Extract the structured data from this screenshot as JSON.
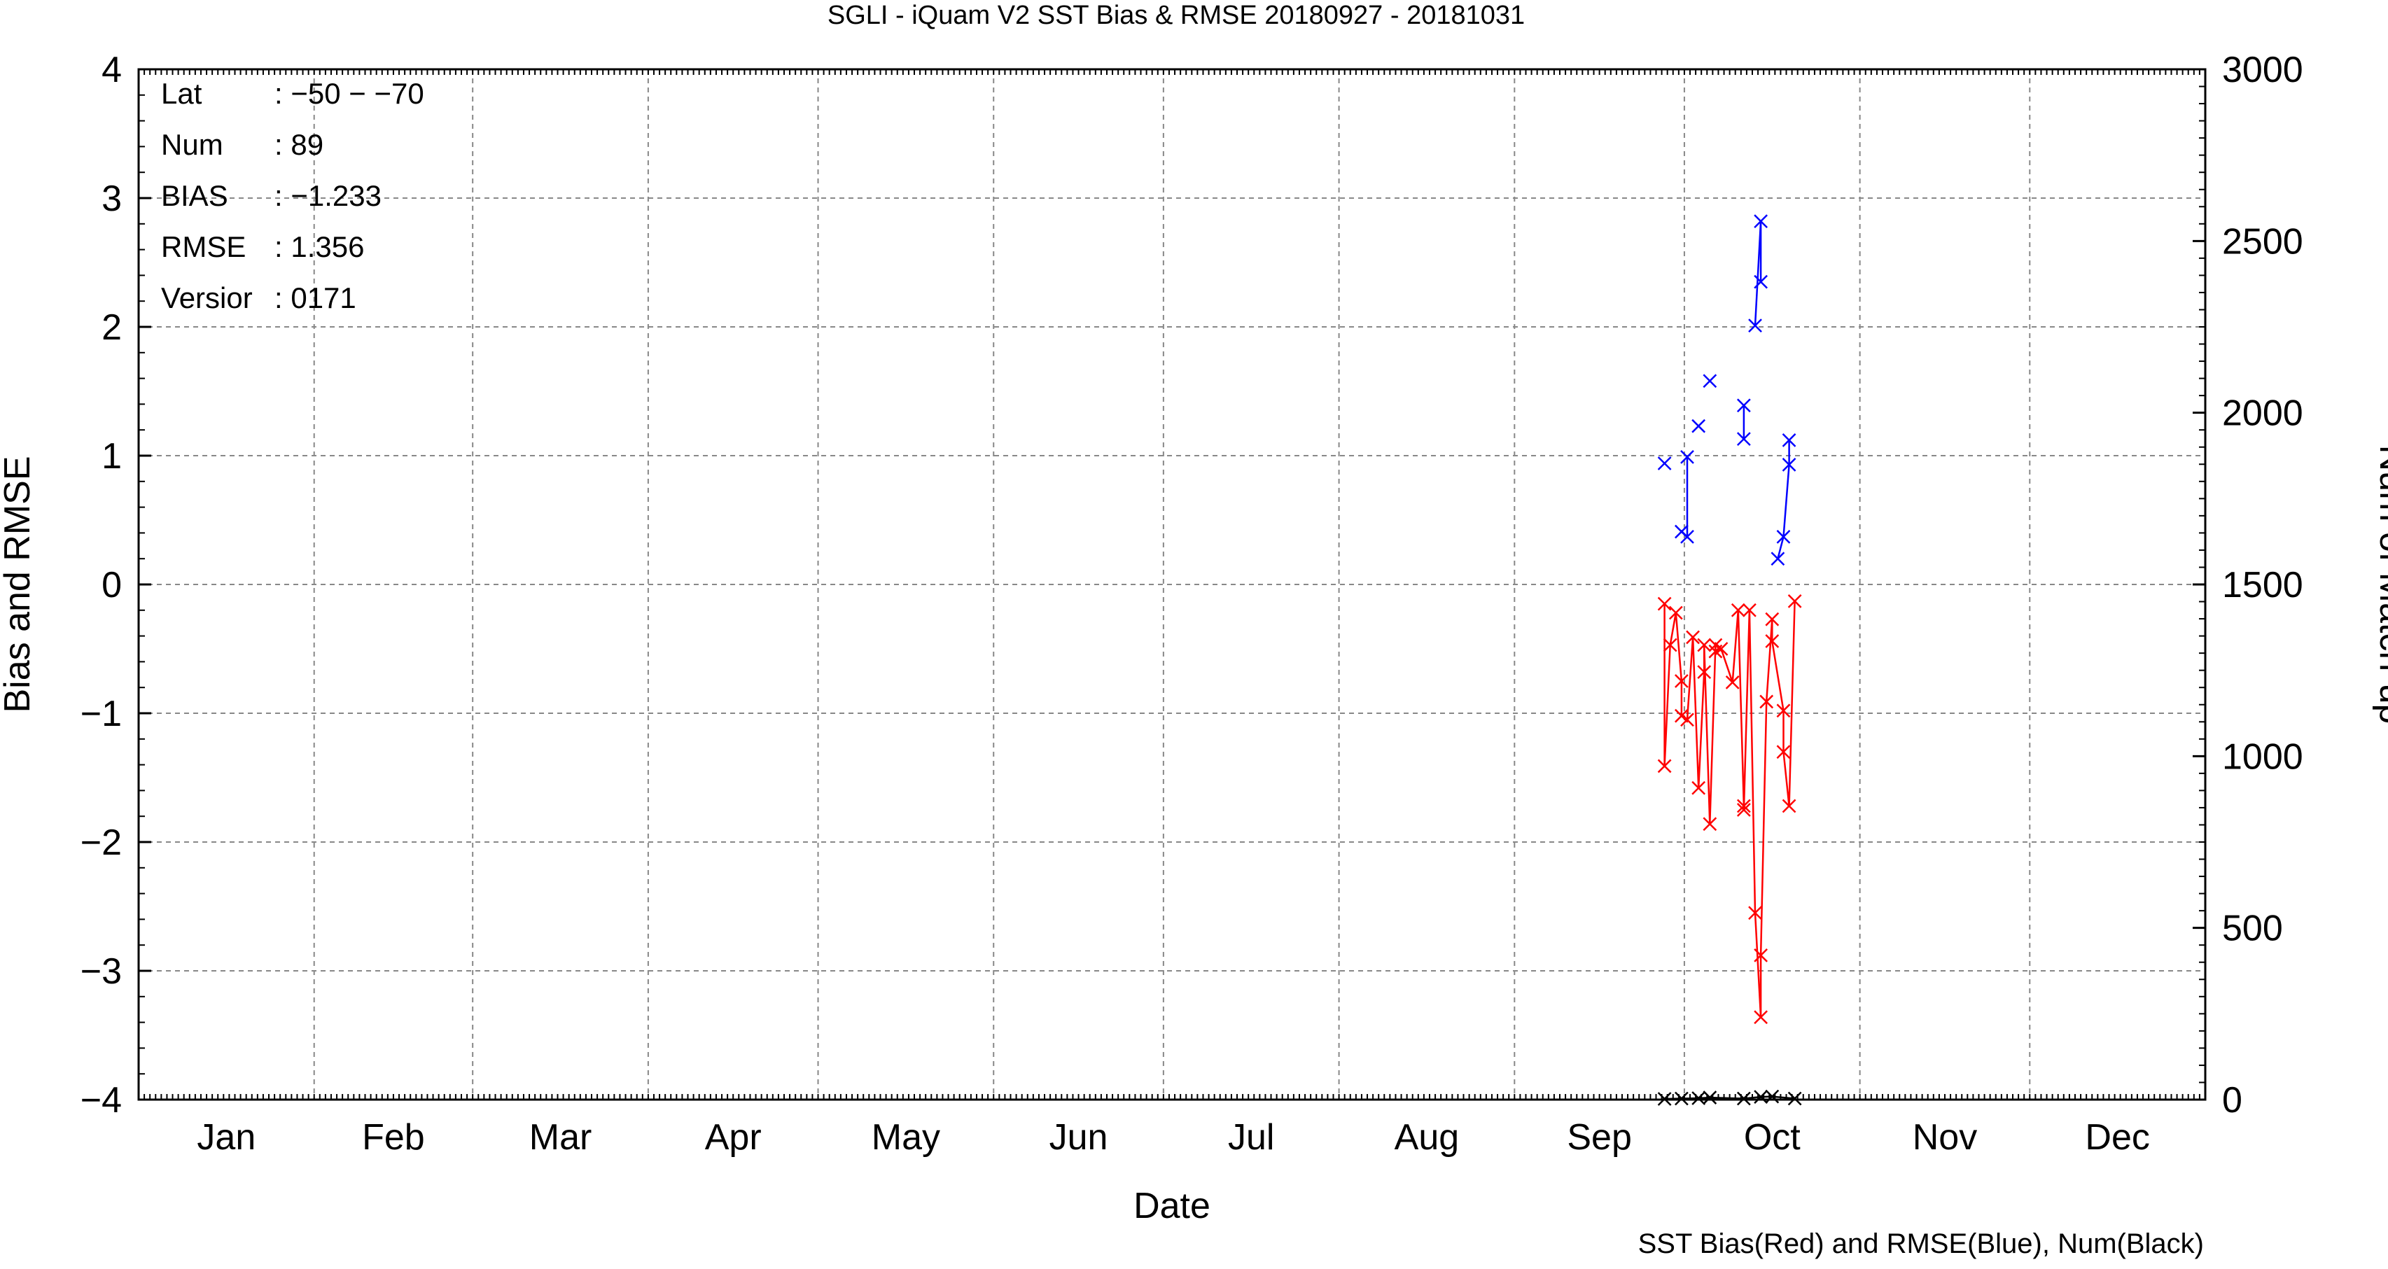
{
  "chart_data": {
    "type": "line",
    "title": "SGLI - iQuam V2 SST Bias & RMSE 20180927 - 20181031",
    "xlabel": "Date",
    "ylabel": "Bias and RMSE",
    "y2label": "Num of Match-up",
    "caption": "SST Bias(Red) and RMSE(Blue), Num(Black)",
    "ylim": [
      -4,
      4
    ],
    "y2lim": [
      0,
      3000
    ],
    "yticks": [
      "−4",
      "−3",
      "−2",
      "−1",
      "0",
      "1",
      "2",
      "3",
      "4"
    ],
    "y2ticks": [
      "0",
      "500",
      "1000",
      "1500",
      "2000",
      "2500",
      "3000"
    ],
    "months": [
      "Jan",
      "Feb",
      "Mar",
      "Apr",
      "May",
      "Jun",
      "Jul",
      "Aug",
      "Sep",
      "Oct",
      "Nov",
      "Dec"
    ],
    "grid": true,
    "stats": [
      {
        "label": "Lat",
        "value": ": −50 − −70"
      },
      {
        "label": "Num",
        "value": ": 89"
      },
      {
        "label": "BIAS",
        "value": ": −1.233"
      },
      {
        "label": "RMSE",
        "value": ": 1.356"
      },
      {
        "label": "Versior",
        "value": ": 0171"
      }
    ],
    "series": [
      {
        "key": "bias",
        "color": "#ff0000",
        "points": [
          [
            "2018-09-27",
            -0.15
          ],
          [
            "2018-09-27",
            -1.41
          ],
          [
            "2018-09-28",
            -0.47
          ],
          [
            "2018-09-29",
            -0.22
          ],
          [
            "2018-09-30",
            -0.75
          ],
          [
            "2018-09-30",
            -1.02
          ],
          [
            "2018-10-01",
            -1.05
          ],
          [
            "2018-10-02",
            -0.41
          ],
          [
            "2018-10-03",
            -1.58
          ],
          [
            "2018-10-04",
            -0.68
          ],
          [
            "2018-10-04",
            -0.47
          ],
          [
            "2018-10-05",
            -1.86
          ],
          [
            "2018-10-06",
            -0.47
          ],
          [
            "2018-10-06",
            -0.52
          ],
          [
            "2018-10-07",
            -0.5
          ],
          [
            "2018-10-09",
            -0.76
          ],
          [
            "2018-10-10",
            -0.2
          ],
          [
            "2018-10-11",
            -1.72
          ],
          [
            "2018-10-11",
            -1.75
          ],
          [
            "2018-10-12",
            -0.2
          ],
          [
            "2018-10-13",
            -2.55
          ],
          [
            "2018-10-14",
            -3.36
          ],
          [
            "2018-10-14",
            -2.88
          ],
          [
            "2018-10-15",
            -0.91
          ],
          [
            "2018-10-16",
            -0.27
          ],
          [
            "2018-10-16",
            -0.44
          ],
          [
            "2018-10-18",
            -0.98
          ],
          [
            "2018-10-18",
            -1.3
          ],
          [
            "2018-10-19",
            -1.72
          ],
          [
            "2018-10-20",
            -0.13
          ]
        ]
      },
      {
        "key": "rmse",
        "color": "#0000ff",
        "points": [
          [
            "2018-09-27",
            0.94
          ],
          null,
          [
            "2018-09-30",
            0.41
          ],
          [
            "2018-10-01",
            0.37
          ],
          [
            "2018-10-01",
            0.99
          ],
          null,
          [
            "2018-10-03",
            1.23
          ],
          null,
          [
            "2018-10-05",
            1.58
          ],
          null,
          [
            "2018-10-11",
            1.13
          ],
          [
            "2018-10-11",
            1.39
          ],
          null,
          [
            "2018-10-13",
            2.01
          ],
          [
            "2018-10-14",
            2.82
          ],
          [
            "2018-10-14",
            2.35
          ],
          null,
          [
            "2018-10-17",
            0.2
          ],
          [
            "2018-10-18",
            0.37
          ],
          [
            "2018-10-19",
            0.93
          ],
          [
            "2018-10-19",
            1.12
          ]
        ]
      },
      {
        "key": "num",
        "color": "#000000",
        "points": [
          [
            "2018-09-27",
            2
          ],
          [
            "2018-09-30",
            3
          ],
          [
            "2018-10-03",
            4
          ],
          [
            "2018-10-05",
            6
          ],
          [
            "2018-10-11",
            3
          ],
          [
            "2018-10-14",
            8
          ],
          [
            "2018-10-16",
            9
          ],
          [
            "2018-10-20",
            3
          ]
        ]
      }
    ]
  }
}
